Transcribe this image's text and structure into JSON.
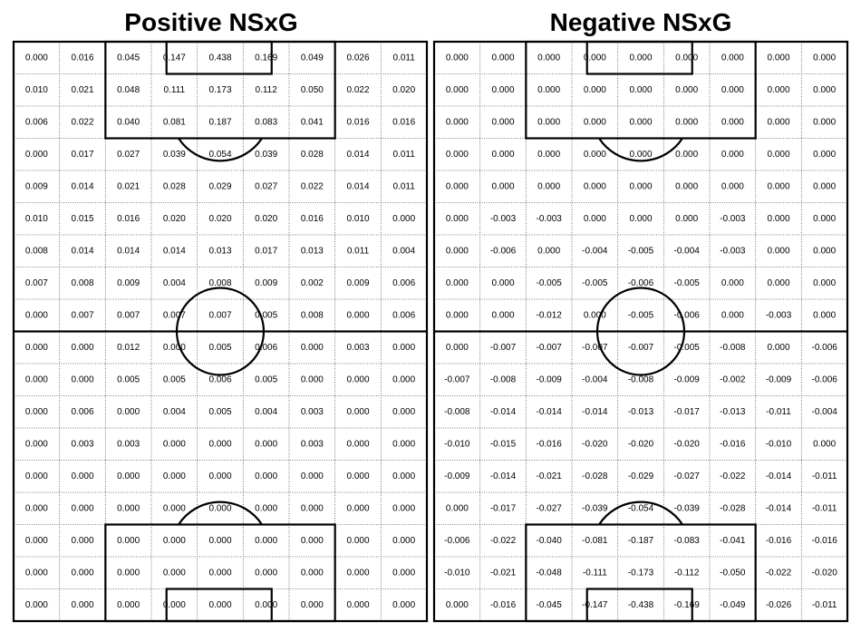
{
  "panels": [
    {
      "title": "Positive NSxG",
      "rows": [
        [
          "0.000",
          "0.016",
          "0.045",
          "0.147",
          "0.438",
          "0.169",
          "0.049",
          "0.026",
          "0.011"
        ],
        [
          "0.010",
          "0.021",
          "0.048",
          "0.111",
          "0.173",
          "0.112",
          "0.050",
          "0.022",
          "0.020"
        ],
        [
          "0.006",
          "0.022",
          "0.040",
          "0.081",
          "0.187",
          "0.083",
          "0.041",
          "0.016",
          "0.016"
        ],
        [
          "0.000",
          "0.017",
          "0.027",
          "0.039",
          "0.054",
          "0.039",
          "0.028",
          "0.014",
          "0.011"
        ],
        [
          "0.009",
          "0.014",
          "0.021",
          "0.028",
          "0.029",
          "0.027",
          "0.022",
          "0.014",
          "0.011"
        ],
        [
          "0.010",
          "0.015",
          "0.016",
          "0.020",
          "0.020",
          "0.020",
          "0.016",
          "0.010",
          "0.000"
        ],
        [
          "0.008",
          "0.014",
          "0.014",
          "0.014",
          "0.013",
          "0.017",
          "0.013",
          "0.011",
          "0.004"
        ],
        [
          "0.007",
          "0.008",
          "0.009",
          "0.004",
          "0.008",
          "0.009",
          "0.002",
          "0.009",
          "0.006"
        ],
        [
          "0.000",
          "0.007",
          "0.007",
          "0.007",
          "0.007",
          "0.005",
          "0.008",
          "0.000",
          "0.006"
        ],
        [
          "0.000",
          "0.000",
          "0.012",
          "0.000",
          "0.005",
          "0.006",
          "0.000",
          "0.003",
          "0.000"
        ],
        [
          "0.000",
          "0.000",
          "0.005",
          "0.005",
          "0.006",
          "0.005",
          "0.000",
          "0.000",
          "0.000"
        ],
        [
          "0.000",
          "0.006",
          "0.000",
          "0.004",
          "0.005",
          "0.004",
          "0.003",
          "0.000",
          "0.000"
        ],
        [
          "0.000",
          "0.003",
          "0.003",
          "0.000",
          "0.000",
          "0.000",
          "0.003",
          "0.000",
          "0.000"
        ],
        [
          "0.000",
          "0.000",
          "0.000",
          "0.000",
          "0.000",
          "0.000",
          "0.000",
          "0.000",
          "0.000"
        ],
        [
          "0.000",
          "0.000",
          "0.000",
          "0.000",
          "0.000",
          "0.000",
          "0.000",
          "0.000",
          "0.000"
        ],
        [
          "0.000",
          "0.000",
          "0.000",
          "0.000",
          "0.000",
          "0.000",
          "0.000",
          "0.000",
          "0.000"
        ],
        [
          "0.000",
          "0.000",
          "0.000",
          "0.000",
          "0.000",
          "0.000",
          "0.000",
          "0.000",
          "0.000"
        ],
        [
          "0.000",
          "0.000",
          "0.000",
          "0.000",
          "0.000",
          "0.000",
          "0.000",
          "0.000",
          "0.000"
        ]
      ]
    },
    {
      "title": "Negative NSxG",
      "rows": [
        [
          "0.000",
          "0.000",
          "0.000",
          "0.000",
          "0.000",
          "0.000",
          "0.000",
          "0.000",
          "0.000"
        ],
        [
          "0.000",
          "0.000",
          "0.000",
          "0.000",
          "0.000",
          "0.000",
          "0.000",
          "0.000",
          "0.000"
        ],
        [
          "0.000",
          "0.000",
          "0.000",
          "0.000",
          "0.000",
          "0.000",
          "0.000",
          "0.000",
          "0.000"
        ],
        [
          "0.000",
          "0.000",
          "0.000",
          "0.000",
          "0.000",
          "0.000",
          "0.000",
          "0.000",
          "0.000"
        ],
        [
          "0.000",
          "0.000",
          "0.000",
          "0.000",
          "0.000",
          "0.000",
          "0.000",
          "0.000",
          "0.000"
        ],
        [
          "0.000",
          "-0.003",
          "-0.003",
          "0.000",
          "0.000",
          "0.000",
          "-0.003",
          "0.000",
          "0.000"
        ],
        [
          "0.000",
          "-0.006",
          "0.000",
          "-0.004",
          "-0.005",
          "-0.004",
          "-0.003",
          "0.000",
          "0.000"
        ],
        [
          "0.000",
          "0.000",
          "-0.005",
          "-0.005",
          "-0.006",
          "-0.005",
          "0.000",
          "0.000",
          "0.000"
        ],
        [
          "0.000",
          "0.000",
          "-0.012",
          "0.000",
          "-0.005",
          "-0.006",
          "0.000",
          "-0.003",
          "0.000"
        ],
        [
          "0.000",
          "-0.007",
          "-0.007",
          "-0.007",
          "-0.007",
          "-0.005",
          "-0.008",
          "0.000",
          "-0.006"
        ],
        [
          "-0.007",
          "-0.008",
          "-0.009",
          "-0.004",
          "-0.008",
          "-0.009",
          "-0.002",
          "-0.009",
          "-0.006"
        ],
        [
          "-0.008",
          "-0.014",
          "-0.014",
          "-0.014",
          "-0.013",
          "-0.017",
          "-0.013",
          "-0.011",
          "-0.004"
        ],
        [
          "-0.010",
          "-0.015",
          "-0.016",
          "-0.020",
          "-0.020",
          "-0.020",
          "-0.016",
          "-0.010",
          "0.000"
        ],
        [
          "-0.009",
          "-0.014",
          "-0.021",
          "-0.028",
          "-0.029",
          "-0.027",
          "-0.022",
          "-0.014",
          "-0.011"
        ],
        [
          "0.000",
          "-0.017",
          "-0.027",
          "-0.039",
          "-0.054",
          "-0.039",
          "-0.028",
          "-0.014",
          "-0.011"
        ],
        [
          "-0.006",
          "-0.022",
          "-0.040",
          "-0.081",
          "-0.187",
          "-0.083",
          "-0.041",
          "-0.016",
          "-0.016"
        ],
        [
          "-0.010",
          "-0.021",
          "-0.048",
          "-0.111",
          "-0.173",
          "-0.112",
          "-0.050",
          "-0.022",
          "-0.020"
        ],
        [
          "0.000",
          "-0.016",
          "-0.045",
          "-0.147",
          "-0.438",
          "-0.169",
          "-0.049",
          "-0.026",
          "-0.011"
        ]
      ]
    }
  ]
}
